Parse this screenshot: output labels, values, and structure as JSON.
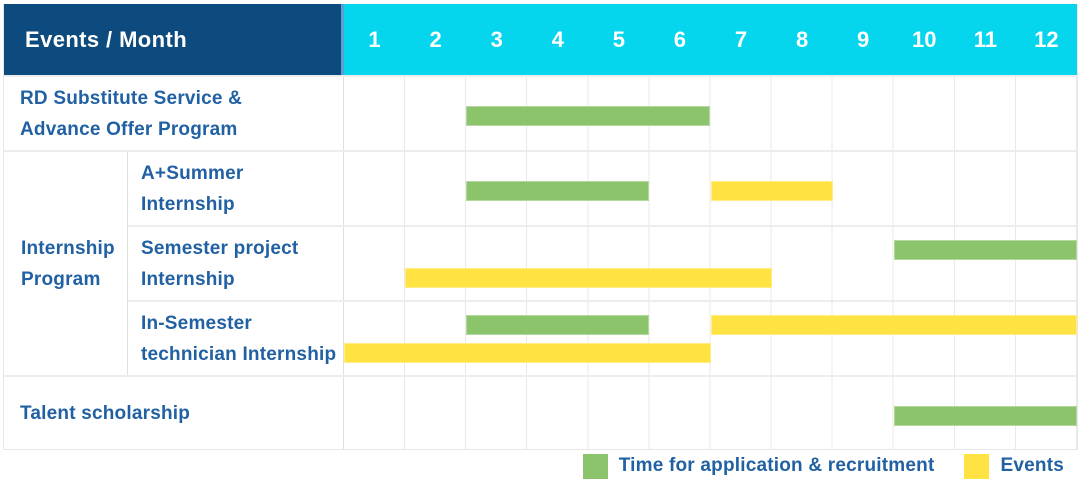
{
  "colors": {
    "navy": "#0d4a7d",
    "cyan": "#06d5ee",
    "divider": "#5c9fd2",
    "green": "#8bc46a",
    "yellow": "#ffe342",
    "labeltext": "#2161a3"
  },
  "chart_data": {
    "type": "table",
    "subtype": "gantt",
    "title": "Events / Month",
    "xlabel": "Month",
    "x_ticks": [
      "1",
      "2",
      "3",
      "4",
      "5",
      "6",
      "7",
      "8",
      "9",
      "10",
      "11",
      "12"
    ],
    "x_range": [
      1,
      12
    ],
    "legend_position": "bottom-right",
    "legend": [
      {
        "kind": "application",
        "label": "Time for application & recruitment"
      },
      {
        "kind": "events",
        "label": "Events"
      }
    ],
    "group": {
      "label": "Internship Program",
      "lines": [
        "Internship",
        "Program"
      ]
    },
    "rows": [
      {
        "label": "RD Substitute Service & Advance Offer Program",
        "lines": [
          "RD Substitute Service &",
          "Advance Offer Program"
        ],
        "bars": [
          {
            "kind": "application",
            "start_month": 3,
            "end_month": 6,
            "lane": "single"
          }
        ]
      },
      {
        "label": "A+Summer Internship",
        "lines": [
          "A+Summer",
          "Internship"
        ],
        "bars": [
          {
            "kind": "application",
            "start_month": 3,
            "end_month": 5,
            "lane": "single"
          },
          {
            "kind": "events",
            "start_month": 7,
            "end_month": 8,
            "lane": "single"
          }
        ]
      },
      {
        "label": "Semester project Internship",
        "lines": [
          "Semester project",
          "Internship"
        ],
        "bars": [
          {
            "kind": "application",
            "start_month": 10,
            "end_month": 12,
            "lane": "upper"
          },
          {
            "kind": "events",
            "start_month": 2,
            "end_month": 7,
            "lane": "lower"
          }
        ]
      },
      {
        "label": "In-Semester technician Internship",
        "lines": [
          "In-Semester",
          "technician Internship"
        ],
        "bars": [
          {
            "kind": "application",
            "start_month": 3,
            "end_month": 5,
            "lane": "upper"
          },
          {
            "kind": "events",
            "start_month": 7,
            "end_month": 12,
            "lane": "upper"
          },
          {
            "kind": "events",
            "start_month": 1,
            "end_month": 6,
            "lane": "lower"
          }
        ]
      },
      {
        "label": "Talent scholarship",
        "lines": [
          "Talent scholarship",
          ""
        ],
        "bars": [
          {
            "kind": "application",
            "start_month": 10,
            "end_month": 12,
            "lane": "single"
          }
        ]
      }
    ]
  }
}
